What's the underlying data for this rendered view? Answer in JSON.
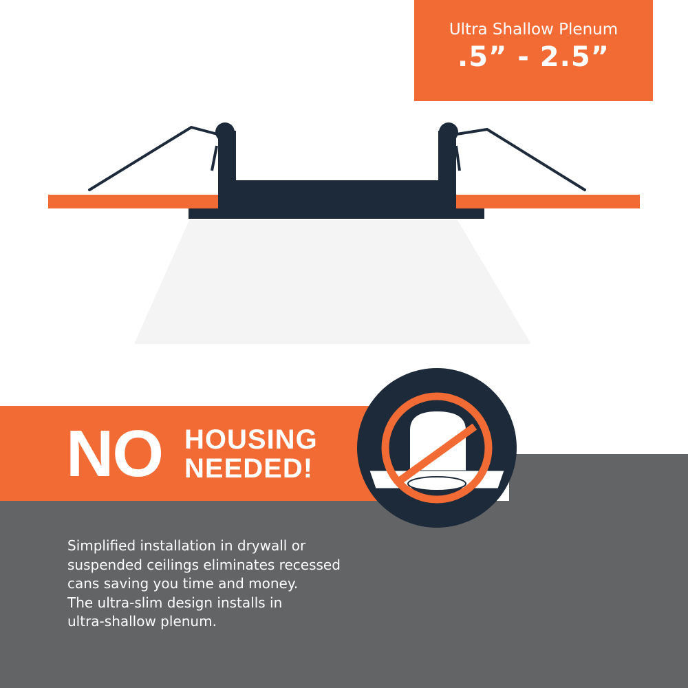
{
  "badge": {
    "subtitle": "Ultra Shallow Plenum",
    "range": ".5” - 2.5”"
  },
  "headline": {
    "no": "NO",
    "line1": "HOUSING",
    "line2": "NEEDED!"
  },
  "description": [
    "Simplified installation in drywall or",
    "suspended ceilings eliminates recessed",
    "cans saving you time and money.",
    "The ultra-slim design installs in",
    "ultra-shallow plenum."
  ],
  "colors": {
    "orange": "#f26b35",
    "navy": "#1c2a3a",
    "gray": "#636466",
    "beam": "#f4f4f4"
  },
  "icons": [
    "no-housing-prohibited-icon",
    "recessed-light-fixture-illustration"
  ]
}
